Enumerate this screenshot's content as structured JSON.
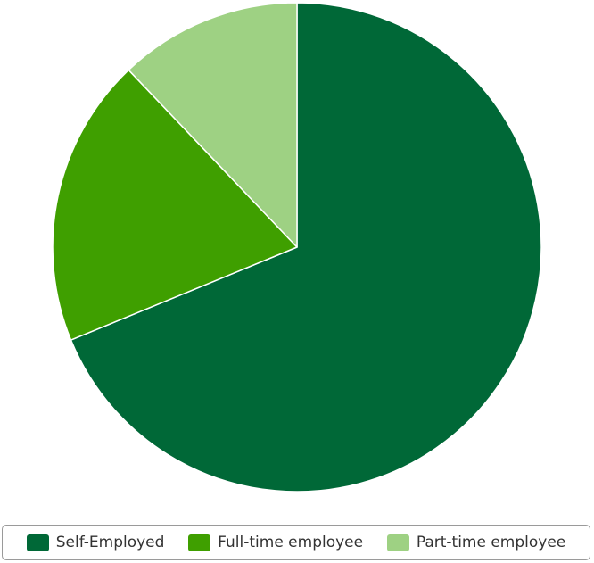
{
  "chart_data": {
    "type": "pie",
    "slices": [
      {
        "name": "Self-Employed",
        "value": 68.8,
        "color": "#006837"
      },
      {
        "name": "Full-time employee",
        "value": 19.1,
        "color": "#3f9f00"
      },
      {
        "name": "Part-time employee",
        "value": 12.1,
        "color": "#9ed183"
      }
    ],
    "start_angle": "12 o'clock",
    "direction": "clockwise",
    "legend_position": "bottom",
    "slice_border_color": "#ffffff"
  },
  "legend": {
    "items": [
      {
        "label": "Self-Employed",
        "color": "#006837"
      },
      {
        "label": "Full-time employee",
        "color": "#3f9f00"
      },
      {
        "label": "Part-time employee",
        "color": "#9ed183"
      }
    ]
  }
}
